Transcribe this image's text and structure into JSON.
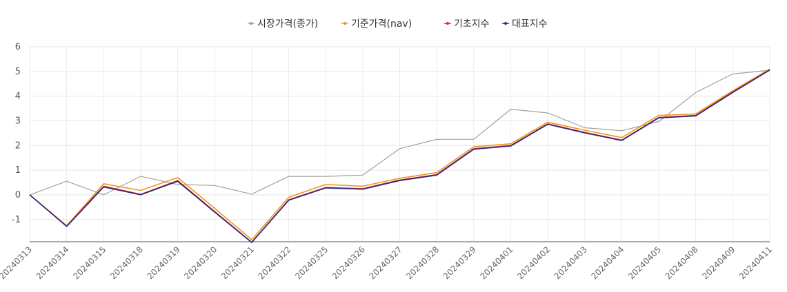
{
  "chart_data": {
    "type": "line",
    "title": "",
    "xlabel": "",
    "ylabel": "",
    "ylim": [
      -1.9,
      6
    ],
    "y_ticks": [
      6,
      5,
      4,
      3,
      2,
      1,
      0,
      -1
    ],
    "grid": true,
    "legend_position": "top-center",
    "categories": [
      "20240313",
      "20240314",
      "20240315",
      "20240318",
      "20240319",
      "20240320",
      "20240321",
      "20240322",
      "20240325",
      "20240326",
      "20240327",
      "20240328",
      "20240329",
      "20240401",
      "20240402",
      "20240403",
      "20240404",
      "20240405",
      "20240408",
      "20240409",
      "20240411"
    ],
    "series": [
      {
        "name": "시장가격(종가)",
        "color": "#a0a0a0",
        "values": [
          0,
          0.55,
          0.0,
          0.75,
          0.42,
          0.38,
          0.03,
          0.75,
          0.75,
          0.8,
          1.87,
          2.25,
          2.25,
          3.47,
          3.32,
          2.72,
          2.6,
          2.97,
          4.15,
          4.9,
          5.05
        ]
      },
      {
        "name": "기준가격(nav)",
        "color": "#f0961e",
        "values": [
          0,
          -1.25,
          0.45,
          0.18,
          0.7,
          -0.55,
          -1.82,
          -0.1,
          0.42,
          0.35,
          0.67,
          0.9,
          1.95,
          2.07,
          2.95,
          2.62,
          2.32,
          3.22,
          3.28,
          4.22,
          5.1
        ]
      },
      {
        "name": "기초지수",
        "color": "#d9271e",
        "values": [
          0,
          -1.27,
          0.35,
          0.02,
          0.58,
          -0.68,
          -1.92,
          -0.2,
          0.3,
          0.25,
          0.6,
          0.82,
          1.87,
          2.0,
          2.88,
          2.53,
          2.22,
          3.14,
          3.22,
          4.17,
          5.07
        ]
      },
      {
        "name": "대표지수",
        "color": "#2b2a80",
        "values": [
          0,
          -1.28,
          0.32,
          0.0,
          0.55,
          -0.7,
          -1.93,
          -0.22,
          0.28,
          0.23,
          0.58,
          0.8,
          1.85,
          1.98,
          2.86,
          2.51,
          2.2,
          3.12,
          3.2,
          4.15,
          5.06
        ]
      }
    ]
  }
}
